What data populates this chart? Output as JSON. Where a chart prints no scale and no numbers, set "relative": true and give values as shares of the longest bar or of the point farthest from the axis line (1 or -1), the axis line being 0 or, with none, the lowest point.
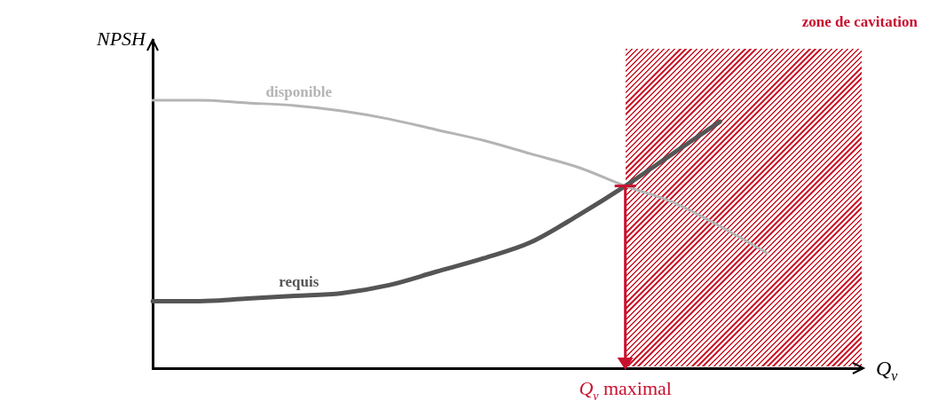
{
  "chart_data": {
    "type": "line",
    "relative": true,
    "xlabel": "Q$_{v}$",
    "ylabel": "NPSH",
    "categories": [
      null,
      null,
      null,
      null,
      null,
      null,
      null,
      null,
      null,
      null,
      null,
      null,
      null,
      null,
      null,
      null
    ],
    "series": [
      {
        "name": "disponible",
        "color": "#b4b4b4",
        "values": [
          1.0,
          1.0,
          0.99,
          0.98,
          0.96,
          0.93,
          0.89,
          0.85,
          0.8,
          0.75,
          0.68,
          0.62,
          0.53,
          0.43,
          null,
          null
        ]
      },
      {
        "name": "requis",
        "color": "#555555",
        "values": [
          0.25,
          0.25,
          0.26,
          0.27,
          0.28,
          0.31,
          0.36,
          0.41,
          0.47,
          0.57,
          0.68,
          0.8,
          0.92,
          null,
          null,
          null
        ]
      }
    ],
    "annotations": [
      "zone de cavitation",
      "Q$_{v}$ maximal"
    ],
    "grid": false,
    "legend": false,
    "marker": "none",
    "line_style": "solid"
  }
}
